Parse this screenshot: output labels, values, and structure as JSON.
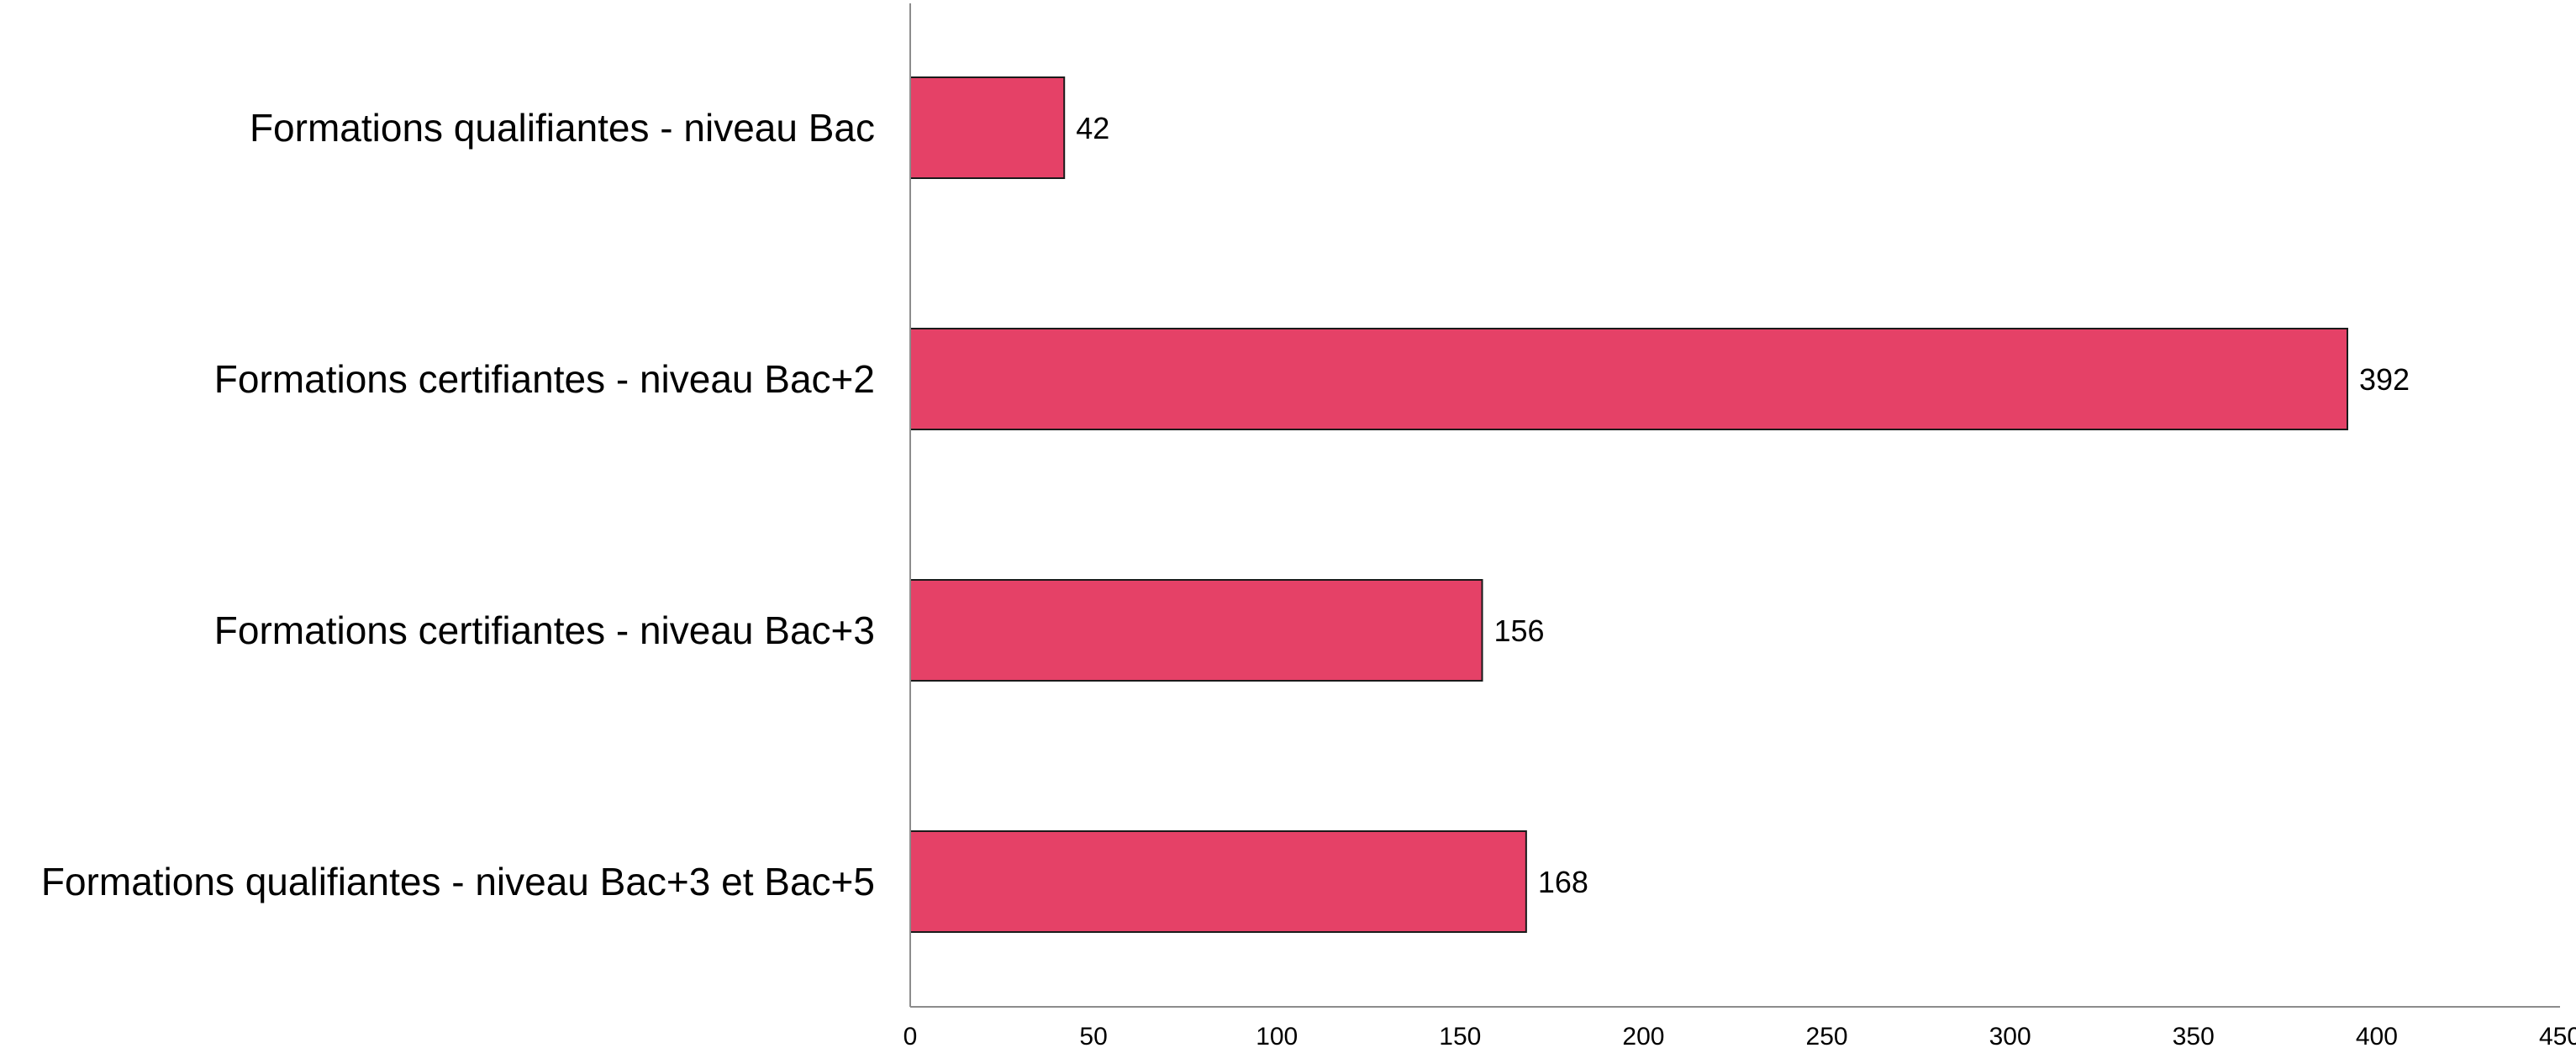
{
  "chart_data": {
    "type": "bar",
    "orientation": "horizontal",
    "categories": [
      "Formations qualifiantes - niveau Bac",
      "Formations certifiantes - niveau Bac+2",
      "Formations certifiantes - niveau Bac+3",
      "Formations qualifiantes - niveau Bac+3 et Bac+5"
    ],
    "values": [
      42,
      392,
      156,
      168
    ],
    "xlim": [
      0,
      450
    ],
    "xticks": [
      0,
      50,
      100,
      150,
      200,
      250,
      300,
      350,
      400,
      450
    ],
    "title": "",
    "xlabel": "",
    "ylabel": "",
    "grid": false,
    "legend": "none",
    "bar_color": "#e54167",
    "bar_edge_color": "#1a1a1a",
    "axis_color": "#8c8c8c"
  }
}
